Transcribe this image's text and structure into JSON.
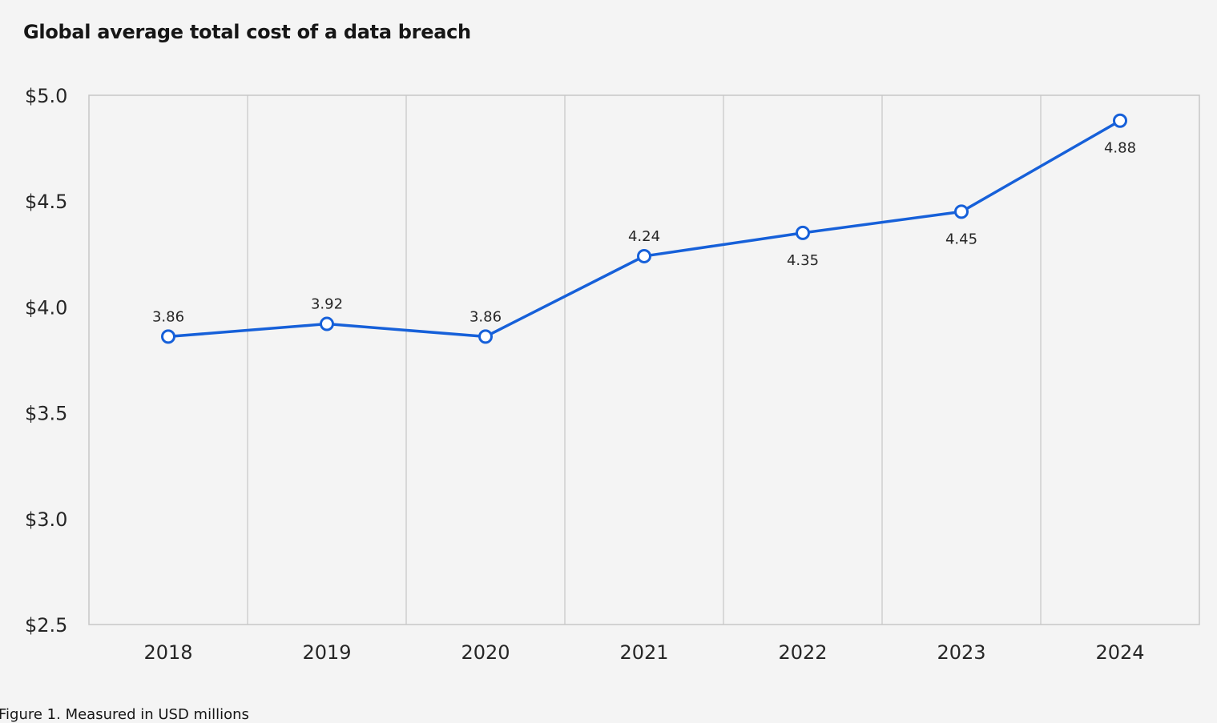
{
  "chart_data": {
    "type": "line",
    "title": "Global average total cost of a data breach",
    "caption": "Figure 1. Measured in USD millions",
    "categories": [
      "2018",
      "2019",
      "2020",
      "2021",
      "2022",
      "2023",
      "2024"
    ],
    "values": [
      3.86,
      3.92,
      3.86,
      4.24,
      4.35,
      4.45,
      4.88
    ],
    "label_positions": [
      "above",
      "above",
      "above",
      "above",
      "below",
      "below",
      "below"
    ],
    "ylim": [
      2.5,
      5.0
    ],
    "yticks": [
      2.5,
      3.0,
      3.5,
      4.0,
      4.5,
      5.0
    ],
    "ytick_labels": [
      "$2.5",
      "$3.0",
      "$3.5",
      "$4.0",
      "$4.5",
      "$5.0"
    ],
    "xlabel": "",
    "ylabel": "",
    "grid": "vertical",
    "line_color": "#1660d9",
    "marker_fill": "#ffffff",
    "grid_color": "#c6c6c6",
    "background_color": "#f4f4f4"
  }
}
